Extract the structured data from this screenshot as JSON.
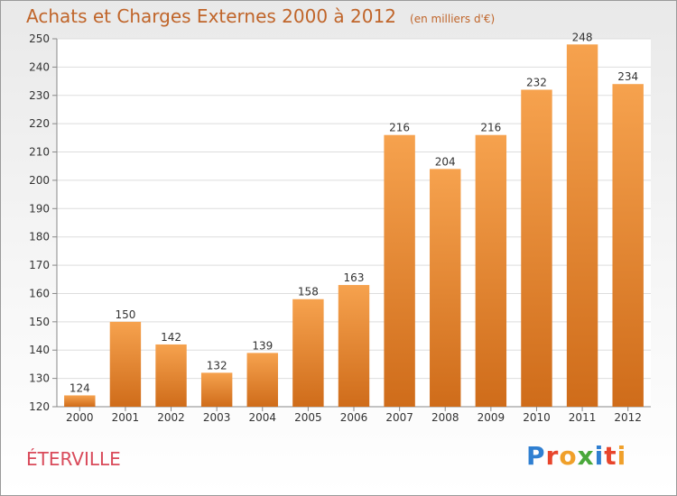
{
  "header": {
    "title": "Achats et Charges Externes 2000 à 2012",
    "subtitle": "(en milliers d'€)"
  },
  "footer": {
    "commune": "ÉTERVILLE",
    "logo": "Proxiti"
  },
  "colors": {
    "bar_light": "#f6a24e",
    "bar_dark": "#cf6c1a",
    "title": "#c0652a",
    "commune": "#d94a5a"
  },
  "chart_data": {
    "type": "bar",
    "title": "Achats et Charges Externes 2000 à 2012",
    "subtitle": "(en milliers d'€)",
    "categories": [
      "2000",
      "2001",
      "2002",
      "2003",
      "2004",
      "2005",
      "2006",
      "2007",
      "2008",
      "2009",
      "2010",
      "2011",
      "2012"
    ],
    "values": [
      124,
      150,
      142,
      132,
      139,
      158,
      163,
      216,
      204,
      216,
      232,
      248,
      234
    ],
    "ylim": [
      120,
      250
    ],
    "yticks": [
      120,
      130,
      140,
      150,
      160,
      170,
      180,
      190,
      200,
      210,
      220,
      230,
      240,
      250
    ],
    "grid": true,
    "legend": "none"
  }
}
